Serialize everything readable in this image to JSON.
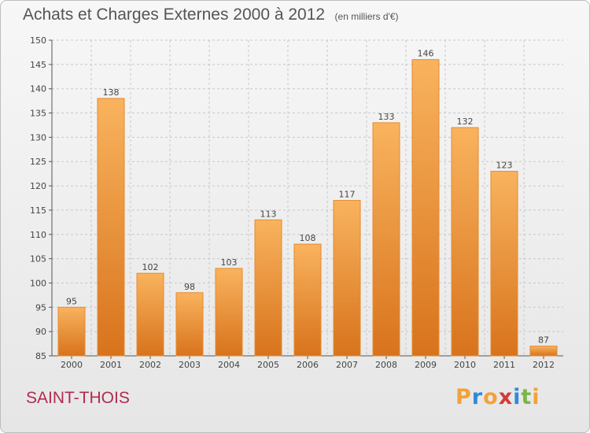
{
  "title": "Achats et Charges Externes 2000 à 2012",
  "unit": "(en milliers d'€)",
  "place": "SAINT-THOIS",
  "logo": {
    "letters": [
      "P",
      "r",
      "o",
      "x",
      "i",
      "t",
      "i"
    ],
    "colors": [
      "#f2a23a",
      "#2f8bd8",
      "#f2a23a",
      "#d23a3a",
      "#2f8bd8",
      "#7ab648",
      "#f2a23a"
    ]
  },
  "colors": {
    "bar_light": "#f9b35e",
    "bar_dark": "#d8731c",
    "bar_edge": "#e58a2e",
    "grid": "#c8c8c8"
  },
  "chart_data": {
    "type": "bar",
    "categories": [
      "2000",
      "2001",
      "2002",
      "2003",
      "2004",
      "2005",
      "2006",
      "2007",
      "2008",
      "2009",
      "2010",
      "2011",
      "2012"
    ],
    "values": [
      95,
      138,
      102,
      98,
      103,
      113,
      108,
      117,
      133,
      146,
      132,
      123,
      87
    ],
    "ylim": [
      85,
      150
    ],
    "yticks": [
      85,
      90,
      95,
      100,
      105,
      110,
      115,
      120,
      125,
      130,
      135,
      140,
      145,
      150
    ],
    "grid": true
  }
}
